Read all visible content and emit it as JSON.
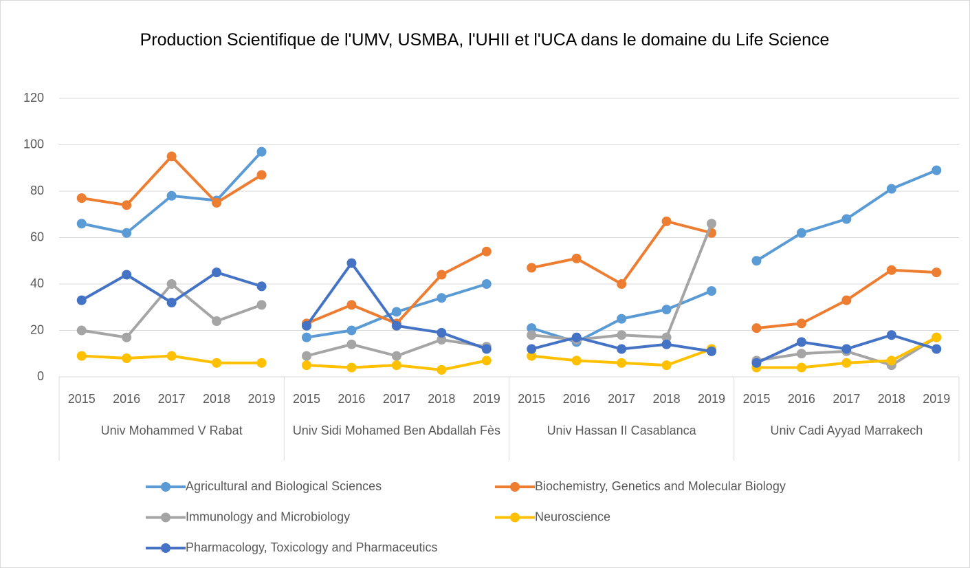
{
  "chart_data": {
    "type": "line",
    "title": "Production Scientifique de l'UMV, USMBA, l'UHII et l'UCA dans le domaine du Life Science",
    "groups": [
      "Univ Mohammed V  Rabat",
      "Univ Sidi Mohamed Ben Abdallah Fès",
      "Univ Hassan II Casablanca",
      "Univ Cadi Ayyad Marrakech"
    ],
    "categories": [
      "2015",
      "2016",
      "2017",
      "2018",
      "2019",
      "2015",
      "2016",
      "2017",
      "2018",
      "2019",
      "2015",
      "2016",
      "2017",
      "2018",
      "2019",
      "2015",
      "2016",
      "2017",
      "2018",
      "2019"
    ],
    "series": [
      {
        "name": "Agricultural and Biological Sciences",
        "color": "#5b9bd5",
        "values": [
          66,
          62,
          78,
          76,
          97,
          17,
          20,
          28,
          34,
          40,
          21,
          15,
          25,
          29,
          37,
          50,
          62,
          68,
          81,
          89
        ]
      },
      {
        "name": "Biochemistry, Genetics and Molecular Biology",
        "color": "#ed7d31",
        "values": [
          77,
          74,
          95,
          75,
          87,
          23,
          31,
          23,
          44,
          54,
          47,
          51,
          40,
          67,
          62,
          21,
          23,
          33,
          46,
          45
        ]
      },
      {
        "name": "Immunology and Microbiology",
        "color": "#a5a5a5",
        "values": [
          20,
          17,
          40,
          24,
          31,
          9,
          14,
          9,
          16,
          13,
          18,
          16,
          18,
          17,
          66,
          7,
          10,
          11,
          5,
          17
        ]
      },
      {
        "name": "Neuroscience",
        "color": "#ffc000",
        "values": [
          9,
          8,
          9,
          6,
          6,
          5,
          4,
          5,
          3,
          7,
          9,
          7,
          6,
          5,
          12,
          4,
          4,
          6,
          7,
          17
        ]
      },
      {
        "name": "Pharmacology, Toxicology and Pharmaceutics",
        "color": "#4472c4",
        "values": [
          33,
          44,
          32,
          45,
          39,
          22,
          49,
          22,
          19,
          12,
          12,
          17,
          12,
          14,
          11,
          6,
          15,
          12,
          18,
          12
        ]
      }
    ],
    "ylim": [
      0,
      120
    ],
    "yticks": [
      0,
      20,
      40,
      60,
      80,
      100,
      120
    ],
    "grid": true,
    "legend": "bottom"
  }
}
